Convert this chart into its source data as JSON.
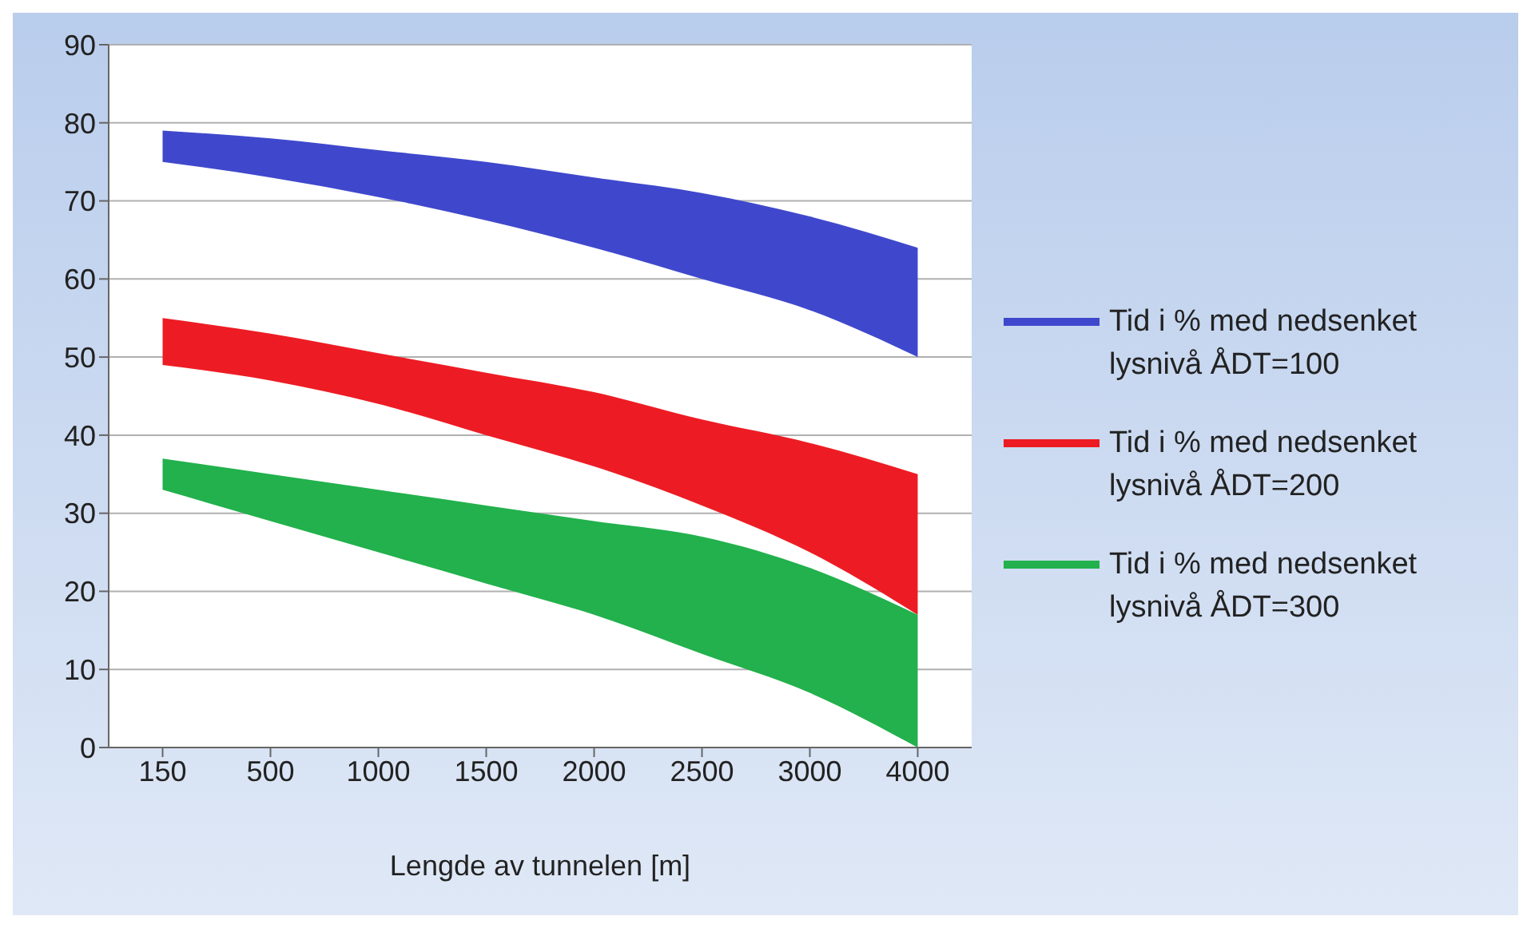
{
  "chart_data": {
    "type": "area",
    "xlabel": "Lengde av tunnelen [m]",
    "categories": [
      "150",
      "500",
      "1000",
      "1500",
      "2000",
      "2500",
      "3000",
      "4000"
    ],
    "series": [
      {
        "name": "Tid i % med nedsenket lysnivå ÅDT=100",
        "color": "#3f48cc",
        "values": [
          null,
          null,
          null,
          null,
          null,
          null,
          null,
          null
        ],
        "lower": [
          75,
          73,
          70.5,
          67.5,
          64,
          60,
          56,
          50
        ],
        "upper": [
          79,
          78,
          76.5,
          75,
          73,
          71,
          68,
          64
        ]
      },
      {
        "name": "Tid i % med nedsenket lysnivå ÅDT=200",
        "color": "#ed1c24",
        "values": [
          null,
          null,
          null,
          null,
          null,
          null,
          null,
          null
        ],
        "lower": [
          49,
          47,
          44,
          40,
          36,
          31,
          25,
          17
        ],
        "upper": [
          55,
          53,
          50.5,
          48,
          45.5,
          42,
          39,
          35
        ]
      },
      {
        "name": "Tid i % med nedsenket lysnivå ÅDT=300",
        "color": "#22b14c",
        "values": [
          null,
          null,
          null,
          null,
          null,
          null,
          null,
          null
        ],
        "lower": [
          33,
          29,
          25,
          21,
          17,
          12,
          7,
          0
        ],
        "upper": [
          37,
          35,
          33,
          31,
          29,
          27,
          23,
          17
        ]
      }
    ],
    "ylim": [
      0,
      90
    ],
    "yticks": [
      0,
      10,
      20,
      30,
      40,
      50,
      60,
      70,
      80,
      90
    ],
    "grid": "y",
    "legend": "right"
  }
}
